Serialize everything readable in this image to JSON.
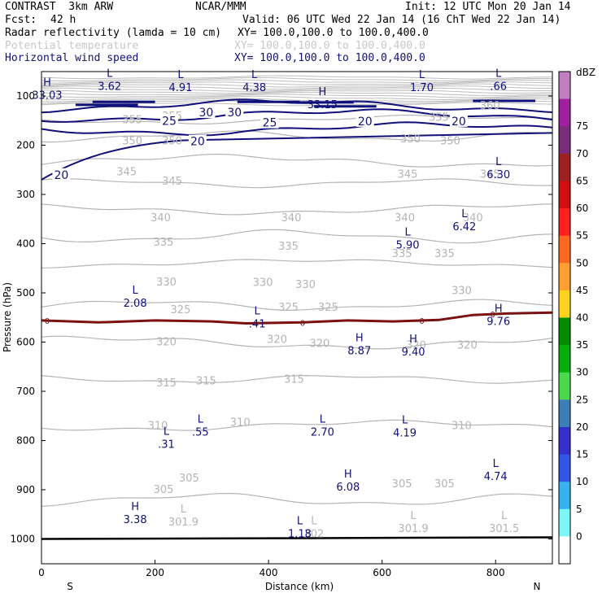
{
  "header": {
    "model": "CONTRAST  3km ARW",
    "org": "NCAR/MMM",
    "init": "Init: 12 UTC Mon 20 Jan 14",
    "fcst_label": "Fcst:",
    "fcst_value": "42 h",
    "valid": "Valid: 06 UTC Wed 22 Jan 14 (16 ChT Wed 22 Jan 14)",
    "fields": [
      {
        "name": "Radar reflectivity (lamda = 10 cm)",
        "xy": "XY= 100.0,100.0 to 100.0,400.0",
        "color": "#000000"
      },
      {
        "name": "Potential temperature",
        "xy": "XY= 100.0,100.0 to 100.0,400.0",
        "color": "#c8c8c8"
      },
      {
        "name": "Horizontal wind speed",
        "xy": "XY= 100.0,100.0 to 100.0,400.0",
        "color": "#10107a"
      }
    ]
  },
  "chart_data": {
    "type": "contour-cross-section",
    "xlabel": "Distance (km)",
    "ylabel": "Pressure (hPa)",
    "xlim": [
      0,
      900
    ],
    "ylim": [
      1050,
      60
    ],
    "x_ticks": [
      0,
      200,
      400,
      600,
      800
    ],
    "y_ticks": [
      100,
      200,
      300,
      400,
      500,
      600,
      700,
      800,
      900,
      1000
    ],
    "x_end_labels": {
      "left": "S",
      "right": "N"
    },
    "theta_contours": [
      {
        "label": "355",
        "p": 148
      },
      {
        "label": "350",
        "p": 182
      },
      {
        "label": "345",
        "p": 232
      },
      {
        "label": "340",
        "p": 277
      },
      {
        "label": "335",
        "p": 330
      },
      {
        "label": "330",
        "p": 385
      },
      {
        "label": "325",
        "p": 440
      },
      {
        "label": "320",
        "p": 525
      },
      {
        "label": "315",
        "p": 601
      },
      {
        "label": "310",
        "p": 675
      },
      {
        "label": "305",
        "p": 770
      },
      {
        "label": "301.9",
        "p": 920
      }
    ],
    "theta_labels": [
      {
        "text": "360",
        "x": 790,
        "p": 118
      },
      {
        "text": "355",
        "x": 160,
        "p": 147
      },
      {
        "text": "355",
        "x": 230,
        "p": 140
      },
      {
        "text": "355",
        "x": 700,
        "p": 142
      },
      {
        "text": "350",
        "x": 160,
        "p": 190
      },
      {
        "text": "350",
        "x": 230,
        "p": 190
      },
      {
        "text": "350",
        "x": 650,
        "p": 186
      },
      {
        "text": "350",
        "x": 720,
        "p": 190
      },
      {
        "text": "345",
        "x": 150,
        "p": 253
      },
      {
        "text": "345",
        "x": 230,
        "p": 272
      },
      {
        "text": "345",
        "x": 645,
        "p": 258
      },
      {
        "text": "345",
        "x": 790,
        "p": 258
      },
      {
        "text": "340",
        "x": 210,
        "p": 346
      },
      {
        "text": "340",
        "x": 440,
        "p": 346
      },
      {
        "text": "340",
        "x": 640,
        "p": 346
      },
      {
        "text": "340",
        "x": 760,
        "p": 346
      },
      {
        "text": "335",
        "x": 215,
        "p": 396
      },
      {
        "text": "335",
        "x": 435,
        "p": 404
      },
      {
        "text": "335",
        "x": 635,
        "p": 419
      },
      {
        "text": "335",
        "x": 710,
        "p": 419
      },
      {
        "text": "330",
        "x": 220,
        "p": 477
      },
      {
        "text": "330",
        "x": 390,
        "p": 478
      },
      {
        "text": "330",
        "x": 465,
        "p": 482
      },
      {
        "text": "330",
        "x": 740,
        "p": 494
      },
      {
        "text": "325",
        "x": 245,
        "p": 533
      },
      {
        "text": "325",
        "x": 435,
        "p": 528
      },
      {
        "text": "325",
        "x": 505,
        "p": 528
      },
      {
        "text": "320",
        "x": 220,
        "p": 598
      },
      {
        "text": "320",
        "x": 415,
        "p": 593
      },
      {
        "text": "320",
        "x": 490,
        "p": 602
      },
      {
        "text": "320",
        "x": 660,
        "p": 605
      },
      {
        "text": "320",
        "x": 750,
        "p": 605
      },
      {
        "text": "315",
        "x": 220,
        "p": 682
      },
      {
        "text": "315",
        "x": 290,
        "p": 678
      },
      {
        "text": "315",
        "x": 445,
        "p": 674
      },
      {
        "text": "310",
        "x": 205,
        "p": 769
      },
      {
        "text": "310",
        "x": 350,
        "p": 762
      },
      {
        "text": "310",
        "x": 740,
        "p": 769
      },
      {
        "text": "305",
        "x": 260,
        "p": 875
      },
      {
        "text": "305",
        "x": 215,
        "p": 898
      },
      {
        "text": "305",
        "x": 635,
        "p": 887
      },
      {
        "text": "305",
        "x": 710,
        "p": 887
      }
    ],
    "pressure_extrema": [
      {
        "type": "L",
        "value": "301.9",
        "x": 250,
        "p": 963
      },
      {
        "type": "L",
        "value": "302",
        "x": 480,
        "p": 987
      },
      {
        "type": "L",
        "value": "301.9",
        "x": 655,
        "p": 976
      },
      {
        "type": "L",
        "value": "301.5",
        "x": 815,
        "p": 976
      }
    ],
    "wind_contours": [
      {
        "label": "20",
        "p": 167
      },
      {
        "label": "25",
        "p": 140
      },
      {
        "label": "30",
        "p": 120
      }
    ],
    "wind_labels": [
      {
        "text": "30",
        "x": 290,
        "p": 133
      },
      {
        "text": "30",
        "x": 340,
        "p": 133
      },
      {
        "text": "25",
        "x": 225,
        "p": 150
      },
      {
        "text": "25",
        "x": 402,
        "p": 154
      },
      {
        "text": "20",
        "x": 275,
        "p": 192
      },
      {
        "text": "20",
        "x": 570,
        "p": 151
      },
      {
        "text": "20",
        "x": 735,
        "p": 151
      },
      {
        "text": "20",
        "x": 35,
        "p": 260
      }
    ],
    "wind_extrema": [
      {
        "type": "H",
        "value": "33.03",
        "x": 10,
        "p": 96
      },
      {
        "type": "L",
        "value": "3.62",
        "x": 120,
        "p": 78
      },
      {
        "type": "L",
        "value": "4.91",
        "x": 245,
        "p": 80
      },
      {
        "type": "L",
        "value": "4.38",
        "x": 375,
        "p": 80
      },
      {
        "type": "H",
        "value": "33.15",
        "x": 495,
        "p": 115
      },
      {
        "type": "L",
        "value": "1.70",
        "x": 670,
        "p": 80
      },
      {
        "type": "L",
        "value": ".66",
        "x": 805,
        "p": 78
      },
      {
        "type": "L",
        "value": "6.30",
        "x": 805,
        "p": 257
      },
      {
        "type": "L",
        "value": "6.42",
        "x": 745,
        "p": 363
      },
      {
        "type": "L",
        "value": "5.90",
        "x": 645,
        "p": 400
      },
      {
        "type": "L",
        "value": "2.08",
        "x": 165,
        "p": 518
      },
      {
        "type": "L",
        "value": ".41",
        "x": 380,
        "p": 560
      },
      {
        "type": "H",
        "value": "8.87",
        "x": 560,
        "p": 615
      },
      {
        "type": "H",
        "value": "9.40",
        "x": 655,
        "p": 617
      },
      {
        "type": "H",
        "value": "9.76",
        "x": 805,
        "p": 555
      },
      {
        "type": "L",
        "value": ".55",
        "x": 280,
        "p": 780
      },
      {
        "type": "L",
        "value": "2.70",
        "x": 495,
        "p": 780
      },
      {
        "type": "L",
        "value": "4.19",
        "x": 640,
        "p": 782
      },
      {
        "type": "L",
        "value": ".31",
        "x": 220,
        "p": 805
      },
      {
        "type": "L",
        "value": "4.74",
        "x": 800,
        "p": 870
      },
      {
        "type": "H",
        "value": "6.08",
        "x": 540,
        "p": 892
      },
      {
        "type": "H",
        "value": "3.38",
        "x": 165,
        "p": 958
      },
      {
        "type": "L",
        "value": "1.18",
        "x": 455,
        "p": 987
      }
    ],
    "zero_isotherm": {
      "label": "0",
      "points": [
        [
          0,
          556
        ],
        [
          100,
          560
        ],
        [
          200,
          556
        ],
        [
          300,
          558
        ],
        [
          360,
          562
        ],
        [
          460,
          560
        ],
        [
          540,
          556
        ],
        [
          620,
          558
        ],
        [
          700,
          555
        ],
        [
          760,
          545
        ],
        [
          820,
          542
        ],
        [
          900,
          540
        ]
      ],
      "label_x": [
        10,
        460,
        670,
        795
      ]
    },
    "surface_pressure": 1000,
    "colorbar": {
      "unit": "dBZ",
      "levels": [
        0,
        5,
        10,
        15,
        20,
        25,
        30,
        35,
        40,
        45,
        50,
        55,
        60,
        65,
        70,
        75
      ],
      "colors": [
        "#ffffff",
        "#7ff7f7",
        "#37b2ef",
        "#3157e8",
        "#3530c8",
        "#3b7fb6",
        "#4cd84c",
        "#05b00a",
        "#008b00",
        "#ffd21d",
        "#ffa030",
        "#ff6820",
        "#ff2020",
        "#d01010",
        "#9e2020",
        "#7b2c7b",
        "#a020a0",
        "#c080c0"
      ]
    }
  }
}
